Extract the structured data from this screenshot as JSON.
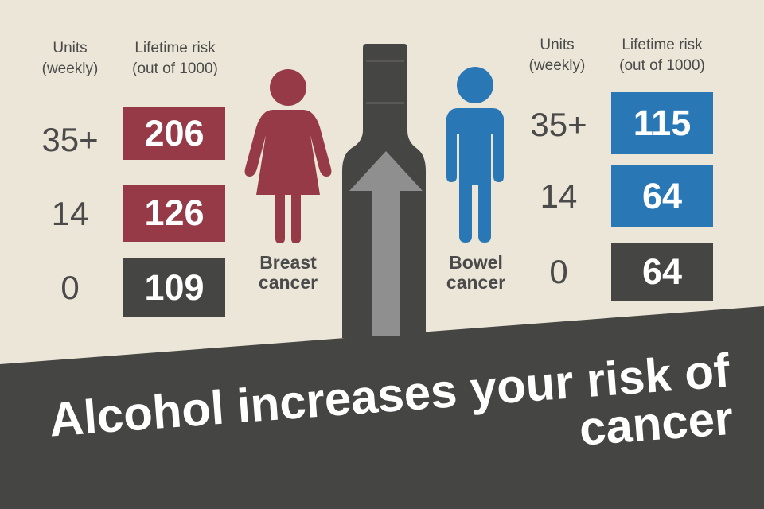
{
  "colors": {
    "background": "#ebe6d7",
    "dark": "#454544",
    "breast": "#963a48",
    "bowel": "#2a77b6",
    "arrow": "#8f8f8f"
  },
  "icons": {
    "bottle": "bottle-icon",
    "arrow": "up-arrow-icon",
    "woman": "woman-icon",
    "man": "man-icon"
  },
  "breast": {
    "units_header": [
      "Units",
      "(weekly)"
    ],
    "risk_header": [
      "Lifetime risk",
      "(out of 1000)"
    ],
    "rows": [
      {
        "units": "35+",
        "risk": "206"
      },
      {
        "units": "14",
        "risk": "126"
      },
      {
        "units": "0",
        "risk": "109"
      }
    ],
    "label": [
      "Breast",
      "cancer"
    ]
  },
  "bowel": {
    "units_header": [
      "Units",
      "(weekly)"
    ],
    "risk_header": [
      "Lifetime risk",
      "(out of 1000)"
    ],
    "rows": [
      {
        "units": "35+",
        "risk": "115"
      },
      {
        "units": "14",
        "risk": "64"
      },
      {
        "units": "0",
        "risk": "64"
      }
    ],
    "label": [
      "Bowel",
      "cancer"
    ]
  },
  "headline": [
    "Alcohol increases your risk of",
    "cancer"
  ]
}
